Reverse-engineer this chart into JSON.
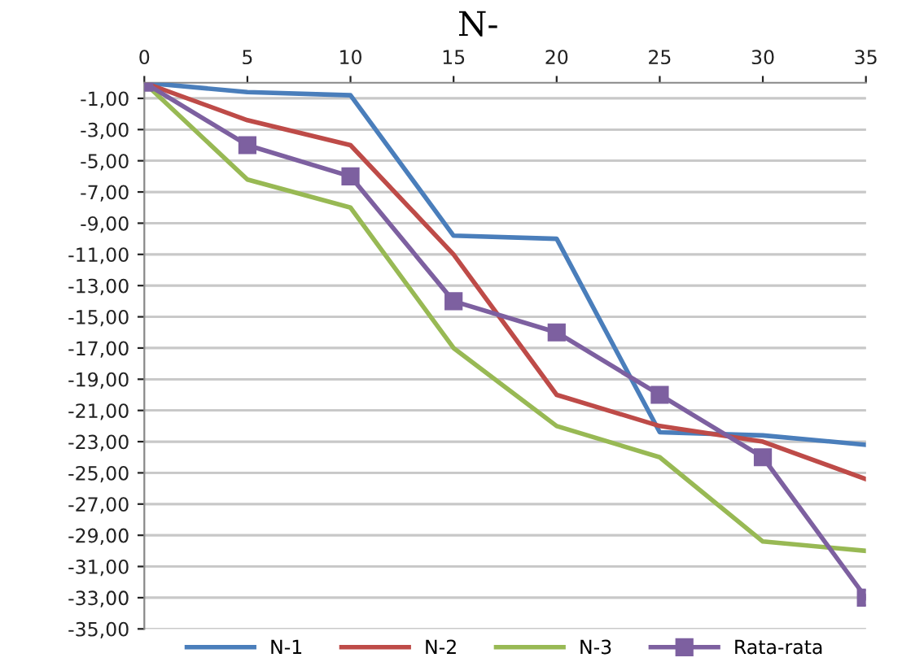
{
  "chart_data": {
    "type": "line",
    "title": "N-",
    "x": [
      0,
      5,
      10,
      15,
      20,
      25,
      30,
      35
    ],
    "series": [
      {
        "name": "N-1",
        "color": "#4a7ebb",
        "values": [
          0,
          -0.6,
          -0.8,
          -9.8,
          -10,
          -22.4,
          -22.6,
          -23.2
        ],
        "marker": "none"
      },
      {
        "name": "N-2",
        "color": "#be4b48",
        "values": [
          0,
          -2.4,
          -4,
          -11,
          -20,
          -22,
          -23,
          -25.4
        ],
        "marker": "none"
      },
      {
        "name": "N-3",
        "color": "#98b954",
        "values": [
          0,
          -6.2,
          -8,
          -17,
          -22,
          -24,
          -29.4,
          -30
        ],
        "marker": "none"
      },
      {
        "name": "Rata-rata",
        "color": "#7d60a0",
        "values": [
          0,
          -4,
          -6,
          -14,
          -16,
          -20,
          -24,
          -33
        ],
        "marker": "square"
      }
    ],
    "xlim": [
      0,
      35
    ],
    "xticks": [
      0,
      5,
      10,
      15,
      20,
      25,
      30,
      35
    ],
    "ylim": [
      -35,
      0
    ],
    "yticks": [
      {
        "value": -1,
        "label": "-1,00"
      },
      {
        "value": -3,
        "label": "-3,00"
      },
      {
        "value": -5,
        "label": "-5,00"
      },
      {
        "value": -7,
        "label": "-7,00"
      },
      {
        "value": -9,
        "label": "-9,00"
      },
      {
        "value": -11,
        "label": "-11,00"
      },
      {
        "value": -13,
        "label": "-13,00"
      },
      {
        "value": -15,
        "label": "-15,00"
      },
      {
        "value": -17,
        "label": "-17,00"
      },
      {
        "value": -19,
        "label": "-19,00"
      },
      {
        "value": -21,
        "label": "-21,00"
      },
      {
        "value": -23,
        "label": "-23,00"
      },
      {
        "value": -25,
        "label": "-25,00"
      },
      {
        "value": -27,
        "label": "-27,00"
      },
      {
        "value": -29,
        "label": "-29,00"
      },
      {
        "value": -31,
        "label": "-31,00"
      },
      {
        "value": -33,
        "label": "-33,00"
      },
      {
        "value": -35,
        "label": "-35,00"
      }
    ],
    "grid": "y",
    "legend": "bottom",
    "line_style": "solid"
  }
}
